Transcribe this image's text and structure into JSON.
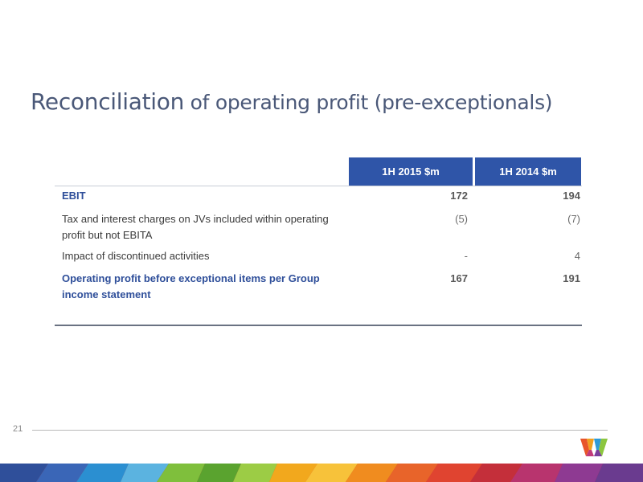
{
  "slide": {
    "title_main": "Reconciliation",
    "title_rest": " of operating profit (pre-exceptionals)",
    "page_number": "21"
  },
  "table": {
    "columns": [
      "1H 2015 $m",
      "1H 2014 $m"
    ],
    "rows": [
      {
        "label": "EBIT",
        "v2015": "172",
        "v2014": "194",
        "emphasis": true
      },
      {
        "label": "Tax and interest charges on JVs included within operating profit but not EBITA",
        "v2015": "(5)",
        "v2014": "(7)",
        "emphasis": false
      },
      {
        "label": "Impact of discontinued activities",
        "v2015": "-",
        "v2014": "4",
        "emphasis": false
      },
      {
        "label": "Operating profit before exceptional items per Group income statement",
        "v2015": "167",
        "v2014": "191",
        "emphasis": true
      }
    ]
  },
  "colors": {
    "header_blue": "#2f55a8",
    "title_color": "#4a5878",
    "emphasis_label": "#2f4f9a"
  },
  "logo_icon": "w-logo-icon",
  "band_icon": "multicolor-band"
}
